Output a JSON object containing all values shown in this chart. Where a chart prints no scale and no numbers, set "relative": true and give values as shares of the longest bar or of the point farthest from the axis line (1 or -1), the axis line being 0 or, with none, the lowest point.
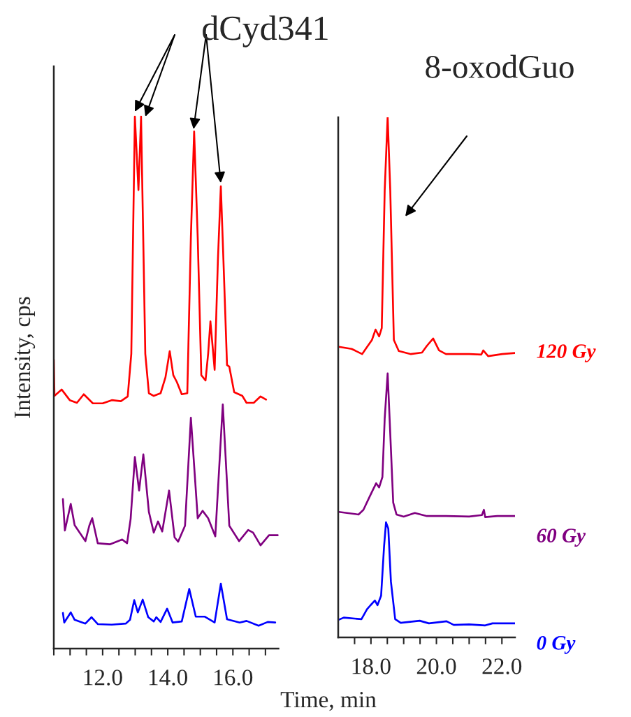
{
  "chart_data": [
    {
      "type": "line",
      "relative": true,
      "xlabel": "Time, min",
      "ylabel": "Intensity, cps",
      "xlim": [
        10.5,
        17.4
      ],
      "xticks": [
        {
          "value": 10.5,
          "label": null
        },
        {
          "value": 11.0,
          "label": null
        },
        {
          "value": 11.5,
          "label": null
        },
        {
          "value": 12.0,
          "label": "12.0"
        },
        {
          "value": 12.5,
          "label": null
        },
        {
          "value": 13.0,
          "label": null
        },
        {
          "value": 13.5,
          "label": null
        },
        {
          "value": 14.0,
          "label": "14.0"
        },
        {
          "value": 14.5,
          "label": null
        },
        {
          "value": 15.0,
          "label": null
        },
        {
          "value": 15.5,
          "label": null
        },
        {
          "value": 16.0,
          "label": "16.0"
        },
        {
          "value": 16.5,
          "label": null
        },
        {
          "value": 17.0,
          "label": null
        }
      ],
      "annotations": [
        "dCyd341"
      ],
      "series": [
        {
          "color": "#ff0000",
          "x": [
            10.5,
            10.52,
            10.74,
            10.99,
            11.21,
            11.42,
            11.7,
            12.0,
            12.28,
            12.56,
            12.77,
            12.88,
            12.99,
            13.1,
            13.18,
            13.31,
            13.42,
            13.57,
            13.78,
            13.93,
            14.06,
            14.17,
            14.28,
            14.43,
            14.6,
            14.71,
            14.81,
            14.92,
            15.03,
            15.16,
            15.24,
            15.31,
            15.44,
            15.54,
            15.63,
            15.71,
            15.82,
            15.89,
            16.04,
            16.29,
            16.42,
            16.64,
            16.85,
            17.02
          ],
          "values": [
            0.543,
            0.475,
            0.487,
            0.467,
            0.462,
            0.478,
            0.461,
            0.461,
            0.467,
            0.465,
            0.474,
            0.554,
            1.0,
            0.862,
            1.0,
            0.554,
            0.48,
            0.475,
            0.48,
            0.51,
            0.559,
            0.514,
            0.501,
            0.478,
            0.48,
            0.773,
            0.972,
            0.773,
            0.514,
            0.504,
            0.554,
            0.615,
            0.524,
            0.73,
            0.869,
            0.73,
            0.533,
            0.53,
            0.482,
            0.475,
            0.462,
            0.462,
            0.474,
            0.468
          ]
        },
        {
          "color": "#800080",
          "x": [
            10.78,
            10.84,
            11.02,
            11.14,
            11.47,
            11.59,
            11.68,
            11.85,
            12.22,
            12.6,
            12.75,
            12.86,
            12.99,
            13.12,
            13.25,
            13.42,
            13.57,
            13.7,
            13.83,
            14.04,
            14.21,
            14.32,
            14.53,
            14.71,
            14.92,
            15.07,
            15.24,
            15.46,
            15.69,
            15.89,
            16.19,
            16.47,
            16.62,
            16.85,
            17.11,
            17.39
          ],
          "values": [
            0.281,
            0.222,
            0.272,
            0.232,
            0.202,
            0.231,
            0.245,
            0.198,
            0.196,
            0.205,
            0.198,
            0.244,
            0.36,
            0.297,
            0.365,
            0.257,
            0.218,
            0.239,
            0.22,
            0.297,
            0.209,
            0.201,
            0.231,
            0.434,
            0.245,
            0.259,
            0.245,
            0.211,
            0.459,
            0.231,
            0.202,
            0.223,
            0.218,
            0.194,
            0.213,
            0.213
          ]
        },
        {
          "color": "#0000ff",
          "x": [
            10.78,
            10.82,
            11.02,
            11.14,
            11.47,
            11.66,
            11.85,
            12.28,
            12.71,
            12.84,
            12.97,
            13.08,
            13.23,
            13.4,
            13.57,
            13.65,
            13.78,
            13.98,
            14.15,
            14.43,
            14.66,
            14.86,
            15.14,
            15.44,
            15.63,
            15.82,
            16.21,
            16.42,
            16.79,
            17.07,
            17.3
          ],
          "values": [
            0.067,
            0.049,
            0.068,
            0.054,
            0.047,
            0.059,
            0.046,
            0.045,
            0.047,
            0.054,
            0.091,
            0.068,
            0.092,
            0.059,
            0.051,
            0.059,
            0.05,
            0.075,
            0.049,
            0.051,
            0.112,
            0.06,
            0.06,
            0.049,
            0.122,
            0.055,
            0.049,
            0.052,
            0.043,
            0.05,
            0.049
          ]
        }
      ]
    },
    {
      "type": "line",
      "relative": true,
      "xlim": [
        17.0,
        22.4
      ],
      "xticks": [
        {
          "value": 17.5,
          "label": null
        },
        {
          "value": 18.0,
          "label": "18.0"
        },
        {
          "value": 18.5,
          "label": null
        },
        {
          "value": 19.0,
          "label": null
        },
        {
          "value": 19.5,
          "label": null
        },
        {
          "value": 20.0,
          "label": "20.0"
        },
        {
          "value": 20.5,
          "label": null
        },
        {
          "value": 21.0,
          "label": null
        },
        {
          "value": 21.5,
          "label": null
        },
        {
          "value": 22.0,
          "label": "22.0"
        }
      ],
      "annotations": [
        "8-oxodGuo"
      ],
      "series": [
        {
          "name": "120 Gy",
          "color": "#ff0000",
          "x": [
            17.02,
            17.41,
            17.73,
            17.84,
            18.03,
            18.14,
            18.25,
            18.33,
            18.42,
            18.51,
            18.59,
            18.7,
            18.85,
            19.22,
            19.56,
            19.71,
            19.9,
            20.08,
            20.29,
            21.0,
            21.37,
            21.43,
            21.58,
            22.01,
            22.4
          ],
          "values": [
            0.558,
            0.554,
            0.544,
            0.554,
            0.571,
            0.591,
            0.578,
            0.594,
            0.858,
            1.0,
            0.858,
            0.571,
            0.55,
            0.544,
            0.547,
            0.56,
            0.574,
            0.551,
            0.544,
            0.544,
            0.543,
            0.551,
            0.54,
            0.544,
            0.546
          ]
        },
        {
          "name": "60 Gy",
          "color": "#800080",
          "x": [
            17.02,
            17.62,
            17.77,
            17.95,
            18.05,
            18.16,
            18.25,
            18.35,
            18.42,
            18.51,
            18.57,
            18.68,
            18.78,
            19.0,
            19.34,
            19.71,
            20.29,
            21.0,
            21.39,
            21.45,
            21.49,
            21.86,
            22.4
          ],
          "values": [
            0.241,
            0.236,
            0.245,
            0.269,
            0.282,
            0.296,
            0.288,
            0.308,
            0.42,
            0.507,
            0.42,
            0.259,
            0.236,
            0.232,
            0.239,
            0.233,
            0.233,
            0.232,
            0.235,
            0.245,
            0.231,
            0.233,
            0.233
          ]
        },
        {
          "name": "0 Gy",
          "color": "#0000ff",
          "x": [
            17.02,
            17.17,
            17.71,
            17.88,
            17.99,
            18.12,
            18.2,
            18.31,
            18.4,
            18.46,
            18.53,
            18.61,
            18.74,
            18.91,
            19.49,
            19.77,
            20.31,
            20.53,
            21.0,
            21.49,
            21.71,
            22.4
          ],
          "values": [
            0.034,
            0.038,
            0.035,
            0.054,
            0.062,
            0.071,
            0.062,
            0.08,
            0.174,
            0.221,
            0.209,
            0.107,
            0.035,
            0.028,
            0.032,
            0.027,
            0.031,
            0.024,
            0.025,
            0.023,
            0.027,
            0.027
          ]
        }
      ]
    }
  ]
}
